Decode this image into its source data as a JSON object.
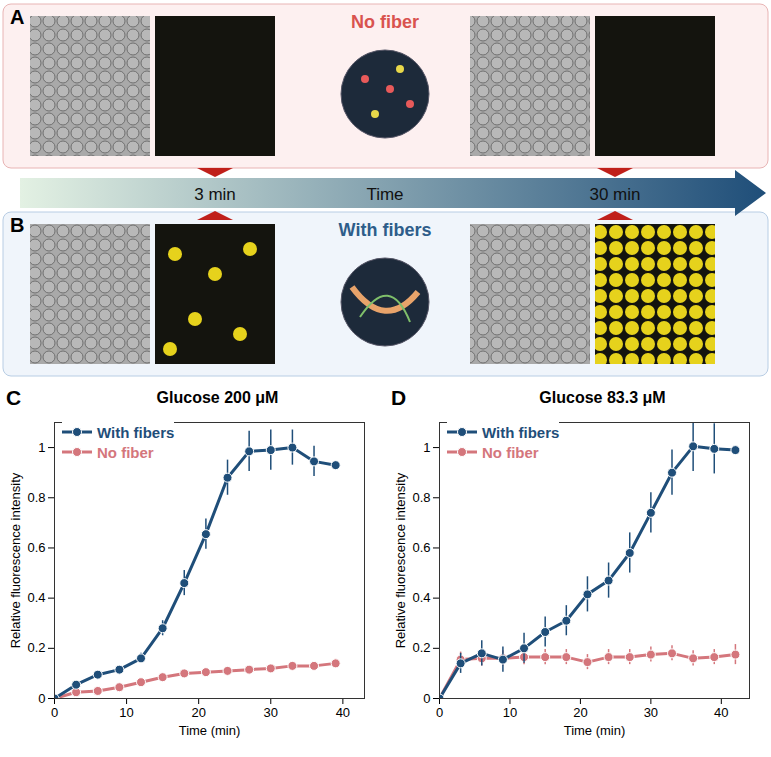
{
  "figure": {
    "panels": [
      {
        "label": "A",
        "title": "No fiber"
      },
      {
        "label": "B",
        "title": "With fibers"
      }
    ],
    "timeline": {
      "label": "Time",
      "marks": [
        "3 min",
        "30 min"
      ]
    },
    "chart_panels": [
      "C",
      "D"
    ]
  },
  "chart_data": [
    {
      "type": "line",
      "title": "Glucose 200 μM",
      "x_label": "Time (min)",
      "y_label": "Relative fluorescence intensity",
      "x": [
        0,
        3,
        6,
        9,
        12,
        15,
        18,
        21,
        24,
        27,
        30,
        33,
        36,
        39
      ],
      "series": [
        {
          "name": "With fibers",
          "color": "#1f4e79",
          "marker": "circle",
          "values": [
            0,
            0.055,
            0.095,
            0.115,
            0.16,
            0.28,
            0.46,
            0.655,
            0.88,
            0.985,
            0.99,
            1.0,
            0.945,
            0.93
          ],
          "errors": [
            0,
            0.01,
            0.01,
            0.01,
            0.02,
            0.03,
            0.05,
            0.06,
            0.07,
            0.08,
            0.08,
            0.07,
            0.06,
            0
          ]
        },
        {
          "name": "No fiber",
          "color": "#d4767c",
          "marker": "circle",
          "values": [
            0,
            0.025,
            0.03,
            0.045,
            0.065,
            0.085,
            0.1,
            0.105,
            0.11,
            0.115,
            0.12,
            0.13,
            0.13,
            0.14
          ],
          "errors": [
            0,
            0.01,
            0.01,
            0.015,
            0.01,
            0.01,
            0.01,
            0.01,
            0.01,
            0.01,
            0.01,
            0.01,
            0.01,
            0.01
          ]
        }
      ],
      "xlim": [
        0,
        43
      ],
      "xticks": [
        0,
        10,
        20,
        30,
        40
      ],
      "ylim": [
        0,
        1.1
      ],
      "yticks": [
        0,
        0.2,
        0.4,
        0.6,
        0.8,
        1
      ],
      "legend": "top-left",
      "grid": false
    },
    {
      "type": "line",
      "title": "Glucose 83.3 μM",
      "x_label": "Time (min)",
      "y_label": "Relative fluorescence intensity",
      "x": [
        0,
        3,
        6,
        9,
        12,
        15,
        18,
        21,
        24,
        27,
        30,
        33,
        36,
        39,
        42
      ],
      "series": [
        {
          "name": "With fibers",
          "color": "#1f4e79",
          "marker": "circle",
          "values": [
            0,
            0.14,
            0.18,
            0.155,
            0.2,
            0.265,
            0.31,
            0.415,
            0.47,
            0.58,
            0.74,
            0.9,
            1.005,
            0.995,
            0.99
          ],
          "errors": [
            0,
            0.04,
            0.05,
            0.05,
            0.06,
            0.06,
            0.06,
            0.07,
            0.07,
            0.08,
            0.08,
            0.09,
            0.1,
            0.1,
            0.01
          ]
        },
        {
          "name": "No fiber",
          "color": "#d4767c",
          "marker": "circle",
          "values": [
            0,
            0.155,
            0.16,
            0.16,
            0.165,
            0.165,
            0.165,
            0.145,
            0.165,
            0.165,
            0.175,
            0.18,
            0.16,
            0.165,
            0.175
          ],
          "errors": [
            0,
            0.03,
            0.03,
            0.03,
            0.03,
            0.03,
            0.03,
            0.03,
            0.03,
            0.03,
            0.03,
            0.03,
            0.03,
            0.03,
            0.04
          ]
        }
      ],
      "xlim": [
        0,
        44
      ],
      "xticks": [
        0,
        10,
        20,
        30,
        40
      ],
      "ylim": [
        0,
        1.1
      ],
      "yticks": [
        0,
        0.2,
        0.4,
        0.6,
        0.8,
        1
      ],
      "legend": "top-left",
      "grid": false
    }
  ]
}
